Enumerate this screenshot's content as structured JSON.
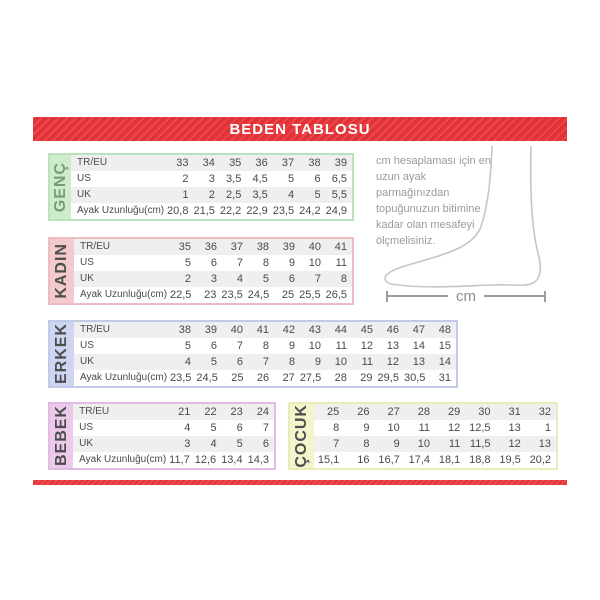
{
  "title": "BEDEN TABLOSU",
  "note": "cm hesaplaması için en uzun ayak parmağınızdan topuğunuzun bitimine kadar olan mesafeyi ölçmelisiniz.",
  "measure_label": "cm",
  "row_headers": [
    "TR/EU",
    "US",
    "UK",
    "Ayak Uzunluğu(cm)"
  ],
  "colors": {
    "banner": "#e73338",
    "banner_text": "#ffffff",
    "row_stripe": "#efefef",
    "body_text": "#4a4a4a",
    "note_text": "#9a9a9a",
    "foot_outline": "#c6c6c6"
  },
  "sections": [
    {
      "label": "GENÇ",
      "theme": {
        "bg": "#cdeccb",
        "border": "#bce2ba",
        "text": "#74a074"
      },
      "has_row_headers": true,
      "rows": [
        [
          "33",
          "34",
          "35",
          "36",
          "37",
          "38",
          "39"
        ],
        [
          "2",
          "3",
          "3,5",
          "4,5",
          "5",
          "6",
          "6,5"
        ],
        [
          "1",
          "2",
          "2,5",
          "3,5",
          "4",
          "5",
          "5,5"
        ],
        [
          "20,8",
          "21,5",
          "22,2",
          "22,9",
          "23,5",
          "24,2",
          "24,9"
        ]
      ]
    },
    {
      "label": "KADIN",
      "theme": {
        "bg": "#f3cbce",
        "border": "#ecbcc0",
        "text": "#4d4d4d"
      },
      "has_row_headers": true,
      "rows": [
        [
          "35",
          "36",
          "37",
          "38",
          "39",
          "40",
          "41"
        ],
        [
          "5",
          "6",
          "7",
          "8",
          "9",
          "10",
          "11"
        ],
        [
          "2",
          "3",
          "4",
          "5",
          "6",
          "7",
          "8"
        ],
        [
          "22,5",
          "23",
          "23,5",
          "24,5",
          "25",
          "25,5",
          "26,5"
        ]
      ]
    },
    {
      "label": "ERKEK",
      "theme": {
        "bg": "#ced5f0",
        "border": "#c1cae9",
        "text": "#4d4d4d"
      },
      "has_row_headers": true,
      "rows": [
        [
          "38",
          "39",
          "40",
          "41",
          "42",
          "43",
          "44",
          "45",
          "46",
          "47",
          "48"
        ],
        [
          "5",
          "6",
          "7",
          "8",
          "9",
          "10",
          "11",
          "12",
          "13",
          "14",
          "15"
        ],
        [
          "4",
          "5",
          "6",
          "7",
          "8",
          "9",
          "10",
          "11",
          "12",
          "13",
          "14"
        ],
        [
          "23,5",
          "24,5",
          "25",
          "26",
          "27",
          "27,5",
          "28",
          "29",
          "29,5",
          "30,5",
          "31"
        ]
      ]
    },
    {
      "label": "BEBEK",
      "theme": {
        "bg": "#ebcaeb",
        "border": "#e2bbe2",
        "text": "#4d4d4d"
      },
      "has_row_headers": true,
      "rows": [
        [
          "21",
          "22",
          "23",
          "24"
        ],
        [
          "4",
          "5",
          "6",
          "7"
        ],
        [
          "3",
          "4",
          "5",
          "6"
        ],
        [
          "11,7",
          "12,6",
          "13,4",
          "14,3"
        ]
      ]
    },
    {
      "label": "ÇOCUK",
      "theme": {
        "bg": "#f5f5cd",
        "border": "#ebebb9",
        "text": "#4d4d4d"
      },
      "has_row_headers": false,
      "rows": [
        [
          "25",
          "26",
          "27",
          "28",
          "29",
          "30",
          "31",
          "32"
        ],
        [
          "8",
          "9",
          "10",
          "11",
          "12",
          "12,5",
          "13",
          "1"
        ],
        [
          "7",
          "8",
          "9",
          "10",
          "11",
          "11,5",
          "12",
          "13"
        ],
        [
          "15,1",
          "16",
          "16,7",
          "17,4",
          "18,1",
          "18,8",
          "19,5",
          "20,2"
        ]
      ]
    }
  ]
}
